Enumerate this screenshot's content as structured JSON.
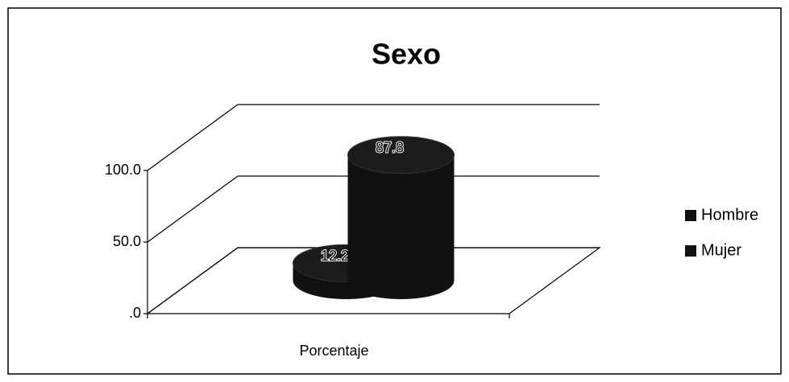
{
  "chart_data": {
    "type": "bar3d",
    "title": "Sexo",
    "categories": [
      "Porcentaje"
    ],
    "series": [
      {
        "name": "Hombre",
        "color": "#111111",
        "values": [
          12.2
        ]
      },
      {
        "name": "Mujer",
        "color": "#111111",
        "values": [
          87.8
        ]
      }
    ],
    "ylim": [
      0,
      100
    ],
    "yticks": [
      {
        "value": 0,
        "label": ".0"
      },
      {
        "value": 50,
        "label": "50.0"
      },
      {
        "value": 100,
        "label": "100.0"
      }
    ],
    "grid": true,
    "legend": "right"
  }
}
